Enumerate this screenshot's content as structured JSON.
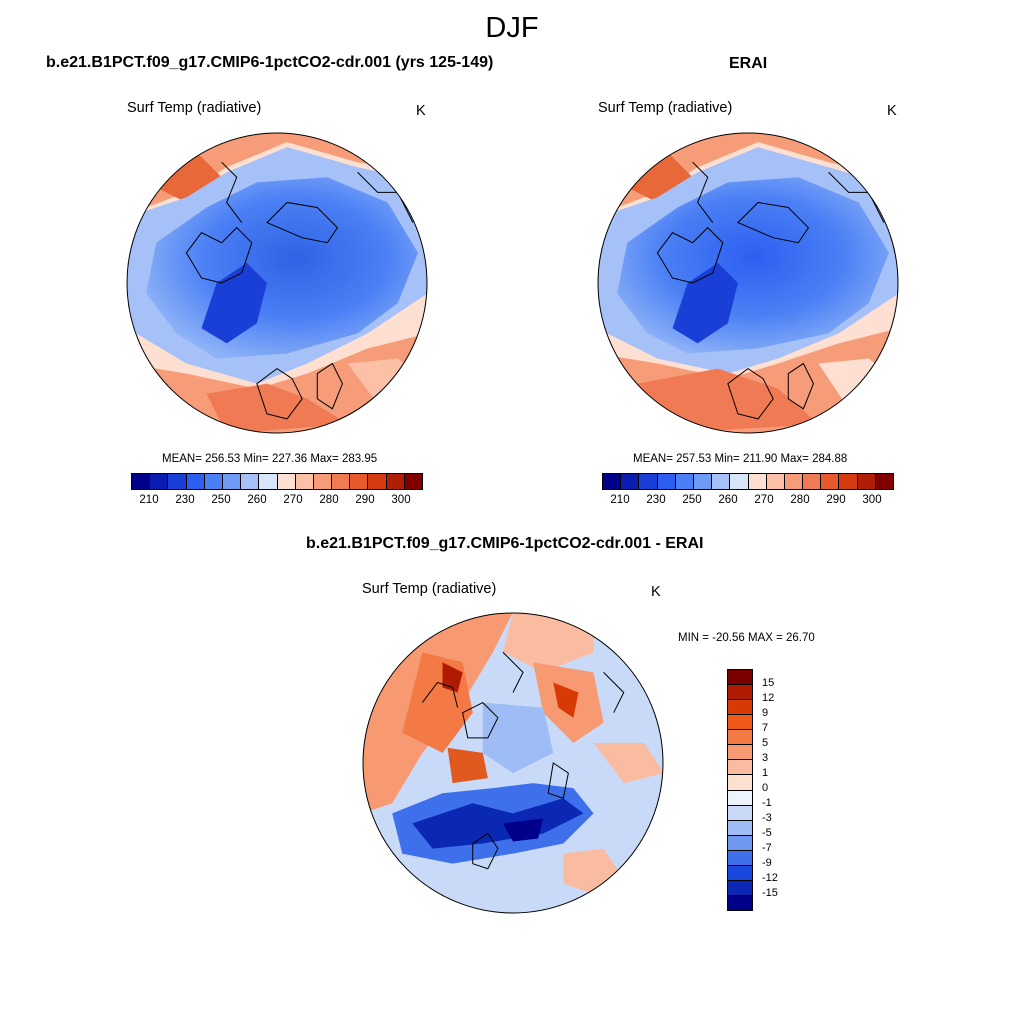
{
  "season": "DJF",
  "panels": {
    "model": {
      "title": "b.e21.B1PCT.f09_g17.CMIP6-1pctCO2-cdr.001 (yrs 125-149)",
      "variable": "Surf Temp (radiative)",
      "units": "K",
      "stats": "MEAN= 256.53  Min= 227.36  Max= 283.95"
    },
    "obs": {
      "title": "ERAI",
      "variable": "Surf Temp (radiative)",
      "units": "K",
      "stats": "MEAN= 257.53  Min= 211.90  Max= 284.88"
    },
    "diff": {
      "title": "b.e21.B1PCT.f09_g17.CMIP6-1pctCO2-cdr.001 - ERAI",
      "variable": "Surf Temp (radiative)",
      "units": "K",
      "stats": "MIN = -20.56 MAX =  26.70"
    }
  },
  "colorbars": {
    "absolute": {
      "ticks": [
        "210",
        "230",
        "250",
        "260",
        "270",
        "280",
        "290",
        "300"
      ],
      "colors": [
        "#00008b",
        "#0a1db0",
        "#1a3fd6",
        "#2c5ff0",
        "#4a7ff5",
        "#6e9bf6",
        "#a6c1f8",
        "#d8e6fb",
        "#fde0d2",
        "#fbc0a5",
        "#f69c78",
        "#f07a54",
        "#e85a2c",
        "#d63a10",
        "#b01e05",
        "#800000"
      ]
    },
    "difference": {
      "ticks": [
        "15",
        "12",
        "9",
        "7",
        "5",
        "3",
        "1",
        "0",
        "-1",
        "-3",
        "-5",
        "-7",
        "-9",
        "-12",
        "-15"
      ],
      "colors": [
        "#7a0000",
        "#b01a00",
        "#d83a05",
        "#f05a18",
        "#f47a45",
        "#f79a72",
        "#fabca0",
        "#fde0d0",
        "#eef4fd",
        "#c8daf8",
        "#9ebcf5",
        "#6f98f1",
        "#3f70ec",
        "#1a48dc",
        "#0a28b4",
        "#00008b"
      ]
    }
  }
}
